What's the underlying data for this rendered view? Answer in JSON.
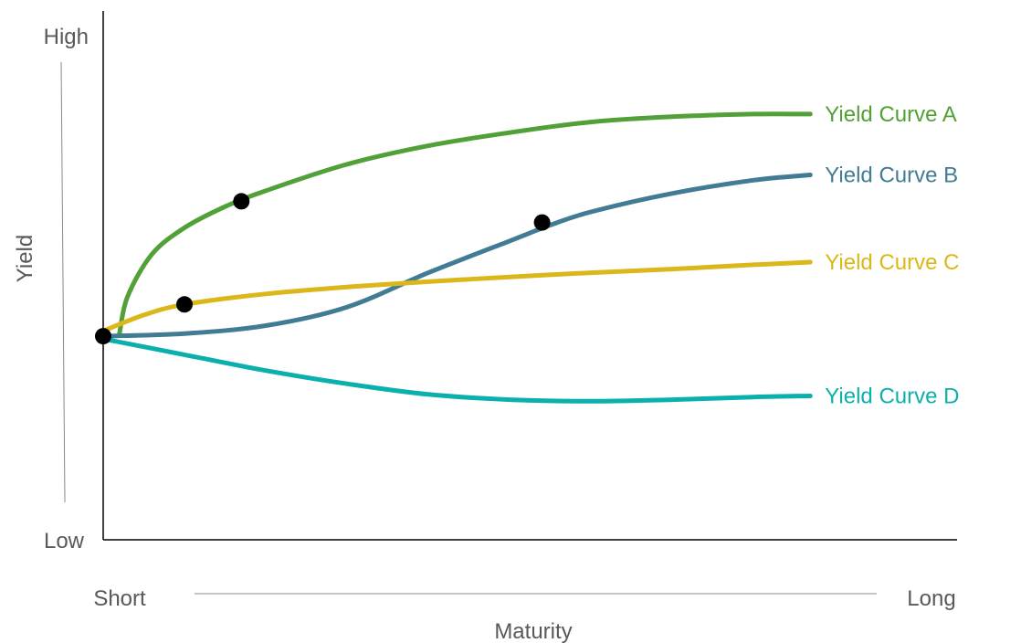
{
  "chart_data": {
    "type": "line",
    "title": "",
    "xlabel": "Maturity",
    "ylabel": "Yield",
    "x_tick_labels": {
      "start": "Short",
      "end": "Long"
    },
    "y_tick_labels": {
      "start": "Low",
      "end": "High"
    },
    "xlim": [
      0,
      10
    ],
    "ylim": [
      0,
      10
    ],
    "grid": false,
    "legend": "inline labels at right end of each curve",
    "series": [
      {
        "name": "Yield Curve A",
        "color": "#52a038",
        "x": [
          0.2,
          0.3,
          0.6,
          1.0,
          1.5,
          2.0,
          3.0,
          4.0,
          5.0,
          6.0,
          7.0,
          8.0,
          8.7
        ],
        "y": [
          3.9,
          4.6,
          5.4,
          5.9,
          6.3,
          6.6,
          7.1,
          7.45,
          7.7,
          7.9,
          8.0,
          8.05,
          8.05
        ]
      },
      {
        "name": "Yield Curve B",
        "color": "#427c94",
        "x": [
          0.0,
          1.0,
          2.0,
          3.0,
          4.0,
          5.0,
          5.5,
          6.0,
          7.0,
          8.0,
          8.7
        ],
        "y": [
          3.85,
          3.9,
          4.05,
          4.4,
          5.05,
          5.65,
          5.95,
          6.2,
          6.55,
          6.8,
          6.9
        ]
      },
      {
        "name": "Yield Curve C",
        "color": "#dcb71a",
        "x": [
          0.0,
          0.5,
          1.0,
          2.0,
          3.0,
          4.0,
          5.0,
          6.0,
          7.0,
          8.0,
          8.7
        ],
        "y": [
          3.95,
          4.25,
          4.45,
          4.65,
          4.78,
          4.88,
          4.97,
          5.05,
          5.12,
          5.2,
          5.25
        ]
      },
      {
        "name": "Yield Curve D",
        "color": "#0bb0ac",
        "x": [
          0.0,
          1.0,
          2.0,
          3.0,
          4.0,
          5.0,
          6.0,
          7.0,
          8.0,
          8.7
        ],
        "y": [
          3.8,
          3.5,
          3.2,
          2.95,
          2.75,
          2.65,
          2.62,
          2.65,
          2.7,
          2.72
        ]
      }
    ],
    "markers": [
      {
        "x": 0.0,
        "y": 3.85
      },
      {
        "x": 1.0,
        "y": 4.45
      },
      {
        "x": 1.7,
        "y": 6.4
      },
      {
        "x": 5.4,
        "y": 6.0
      }
    ]
  }
}
